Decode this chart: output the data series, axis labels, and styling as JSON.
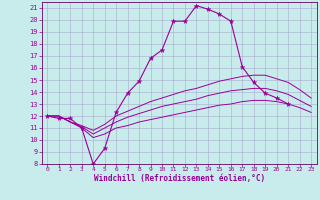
{
  "xlabel": "Windchill (Refroidissement éolien,°C)",
  "background_color": "#c8ecec",
  "line_color": "#990099",
  "grid_color": "#aaaacc",
  "xlim": [
    -0.5,
    23.5
  ],
  "ylim": [
    8,
    21.5
  ],
  "xticks": [
    0,
    1,
    2,
    3,
    4,
    5,
    6,
    7,
    8,
    9,
    10,
    11,
    12,
    13,
    14,
    15,
    16,
    17,
    18,
    19,
    20,
    21,
    22,
    23
  ],
  "yticks": [
    8,
    9,
    10,
    11,
    12,
    13,
    14,
    15,
    16,
    17,
    18,
    19,
    20,
    21
  ],
  "series": [
    {
      "x": [
        0,
        1,
        2,
        3,
        4,
        5,
        6,
        7,
        8,
        9,
        10,
        11,
        12,
        13,
        14,
        15,
        16,
        17,
        18,
        19,
        20,
        21
      ],
      "y": [
        12,
        11.8,
        11.8,
        11.0,
        8.0,
        9.3,
        12.3,
        13.9,
        14.9,
        16.8,
        17.5,
        19.9,
        19.9,
        21.2,
        20.9,
        20.5,
        19.9,
        16.1,
        14.8,
        13.9,
        13.5,
        13.0
      ],
      "marker": true
    },
    {
      "x": [
        0,
        1,
        2,
        3,
        4,
        5,
        6,
        7,
        8,
        9,
        10,
        11,
        12,
        13,
        14,
        15,
        16,
        17,
        18,
        19,
        20,
        21,
        22,
        23
      ],
      "y": [
        12,
        12,
        11.5,
        11.2,
        10.8,
        11.3,
        12.0,
        12.4,
        12.8,
        13.2,
        13.5,
        13.8,
        14.1,
        14.3,
        14.6,
        14.9,
        15.1,
        15.3,
        15.4,
        15.4,
        15.1,
        14.8,
        14.2,
        13.5
      ],
      "marker": false
    },
    {
      "x": [
        0,
        1,
        2,
        3,
        4,
        5,
        6,
        7,
        8,
        9,
        10,
        11,
        12,
        13,
        14,
        15,
        16,
        17,
        18,
        19,
        20,
        21,
        22,
        23
      ],
      "y": [
        12,
        12,
        11.5,
        11.1,
        10.5,
        11.0,
        11.5,
        11.9,
        12.2,
        12.5,
        12.8,
        13.0,
        13.2,
        13.4,
        13.7,
        13.9,
        14.1,
        14.2,
        14.3,
        14.3,
        14.1,
        13.8,
        13.3,
        12.8
      ],
      "marker": false
    },
    {
      "x": [
        0,
        1,
        2,
        3,
        4,
        5,
        6,
        7,
        8,
        9,
        10,
        11,
        12,
        13,
        14,
        15,
        16,
        17,
        18,
        19,
        20,
        21,
        22,
        23
      ],
      "y": [
        12,
        12,
        11.5,
        11.0,
        10.2,
        10.5,
        11.0,
        11.2,
        11.5,
        11.7,
        11.9,
        12.1,
        12.3,
        12.5,
        12.7,
        12.9,
        13.0,
        13.2,
        13.3,
        13.3,
        13.2,
        13.0,
        12.7,
        12.3
      ],
      "marker": false
    }
  ]
}
